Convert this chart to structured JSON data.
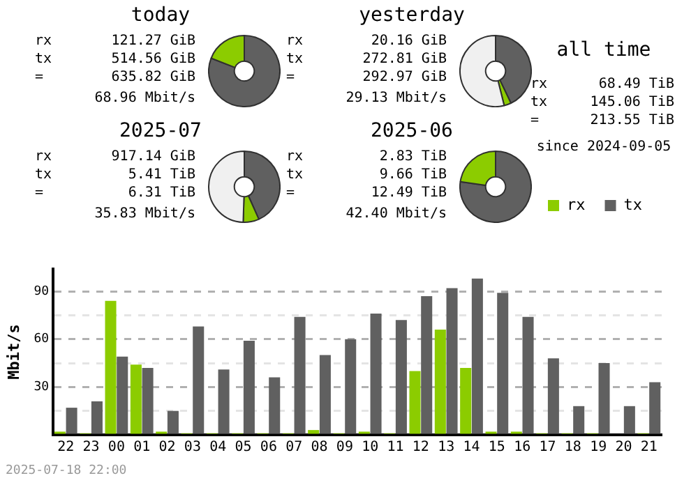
{
  "chart_data": [
    {
      "type": "donut",
      "title": "today",
      "categories": [
        null,
        null,
        null
      ],
      "values": [
        80.9,
        19.1,
        0
      ],
      "colors": [
        "#606060",
        "#8ccc00",
        "#f0f0f0"
      ],
      "annotations": [
        "rx 121.27 GiB",
        "tx 514.56 GiB",
        "= 635.82 GiB",
        "68.96 Mbit/s"
      ]
    },
    {
      "type": "donut",
      "title": "yesterday",
      "categories": [
        null,
        null,
        null
      ],
      "values": [
        42.9,
        3.2,
        53.9
      ],
      "colors": [
        "#606060",
        "#8ccc00",
        "#f0f0f0"
      ],
      "annotations": [
        "rx 20.16 GiB",
        "tx 272.81 GiB",
        "= 292.97 GiB",
        "29.13 Mbit/s"
      ]
    },
    {
      "type": "donut",
      "title": "2025-07",
      "categories": [
        null,
        null,
        null
      ],
      "values": [
        43.3,
        7.2,
        49.5
      ],
      "colors": [
        "#606060",
        "#8ccc00",
        "#f0f0f0"
      ],
      "annotations": [
        "rx 917.14 GiB",
        "tx 5.41 TiB",
        "= 6.31 TiB",
        "35.83 Mbit/s"
      ]
    },
    {
      "type": "donut",
      "title": "2025-06",
      "categories": [
        null,
        null,
        null
      ],
      "values": [
        77.3,
        22.7,
        0
      ],
      "colors": [
        "#606060",
        "#8ccc00",
        "#f0f0f0"
      ],
      "annotations": [
        "rx 2.83 TiB",
        "tx 9.66 TiB",
        "= 12.49 TiB",
        "42.40 Mbit/s"
      ]
    },
    {
      "type": "other",
      "title": "all time",
      "annotations": [
        "rx 68.49 TiB",
        "tx 145.06 TiB",
        "= 213.55 TiB",
        "since 2024-09-05"
      ]
    },
    {
      "type": "bar",
      "ylabel": "Mbit/s",
      "categories": [
        "22",
        "23",
        "00",
        "01",
        "02",
        "03",
        "04",
        "05",
        "06",
        "07",
        "08",
        "09",
        "10",
        "11",
        "12",
        "13",
        "14",
        "15",
        "16",
        "17",
        "18",
        "19",
        "20",
        "21"
      ],
      "series": [
        {
          "name": "rx",
          "color": "#8ccc00",
          "values": [
            2,
            1,
            84,
            44,
            2,
            1,
            1,
            1,
            1,
            1,
            3,
            1,
            2,
            1,
            40,
            66,
            42,
            2,
            2,
            1,
            1,
            1,
            0,
            1
          ]
        },
        {
          "name": "tx",
          "color": "#606060",
          "values": [
            17,
            21,
            49,
            42,
            15,
            68,
            41,
            59,
            36,
            74,
            50,
            60,
            76,
            72,
            87,
            92,
            98,
            89,
            74,
            48,
            18,
            45,
            18,
            33
          ]
        }
      ],
      "ylim": [
        0,
        104
      ],
      "yticks": [
        {
          "value": 0,
          "label": null
        },
        {
          "value": 15,
          "label": null
        },
        30,
        {
          "value": 45,
          "label": null
        },
        60,
        {
          "value": 75,
          "label": null
        },
        90
      ],
      "grid": "y",
      "legend": "top right",
      "annotations": [
        "2025-07-18 22:00"
      ]
    }
  ]
}
